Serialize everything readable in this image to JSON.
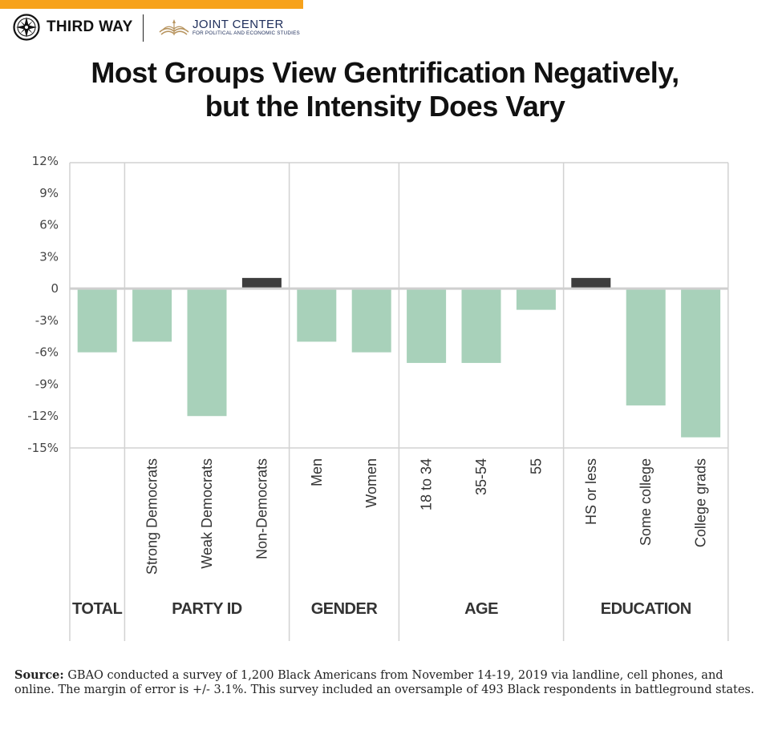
{
  "header": {
    "accent_color": "#f7a21b",
    "logo_left": "THIRD WAY",
    "logo_right_main": "JOINT CENTER",
    "logo_right_sub": "FOR POLITICAL AND ECONOMIC STUDIES"
  },
  "source": {
    "label": "Source:",
    "text": " GBAO conducted a survey of 1,200 Black Americans from November 14-19, 2019 via landline, cell phones, and online. The margin of error is +/- 3.1%. This survey included an oversample of 493 Black respondents in battleground states."
  },
  "chart_data": {
    "type": "bar",
    "title": "Most Groups View Gentrification Negatively, but the Intensity Does Vary",
    "title_lines": [
      "Most Groups View Gentrification Negatively,",
      "but the Intensity Does Vary"
    ],
    "ylim": [
      -15,
      12
    ],
    "yticks": [
      12,
      9,
      6,
      3,
      0,
      -3,
      -6,
      -9,
      -12,
      -15
    ],
    "ytick_labels": [
      "12%",
      "9%",
      "6%",
      "3%",
      "0",
      "-3%",
      "-6%",
      "-9%",
      "-12%",
      "-15%"
    ],
    "grid": "horizontal zero line only",
    "negative_color": "#a8d1ba",
    "positive_color": "#3d3d3d",
    "groups": [
      {
        "label": "TOTAL",
        "bars": [
          {
            "label": "",
            "value": -6
          }
        ]
      },
      {
        "label": "PARTY ID",
        "bars": [
          {
            "label": "Strong Democrats",
            "value": -5
          },
          {
            "label": "Weak Democrats",
            "value": -12
          },
          {
            "label": "Non-Democrats",
            "value": 1
          }
        ]
      },
      {
        "label": "GENDER",
        "bars": [
          {
            "label": "Men",
            "value": -5
          },
          {
            "label": "Women",
            "value": -6
          }
        ]
      },
      {
        "label": "AGE",
        "bars": [
          {
            "label": "18 to 34",
            "value": -7
          },
          {
            "label": "35-54",
            "value": -7
          },
          {
            "label": "55",
            "value": -2
          }
        ]
      },
      {
        "label": "EDUCATION",
        "bars": [
          {
            "label": "HS or less",
            "value": 1
          },
          {
            "label": "Some college",
            "value": -11
          },
          {
            "label": "College grads",
            "value": -14
          }
        ]
      }
    ]
  }
}
